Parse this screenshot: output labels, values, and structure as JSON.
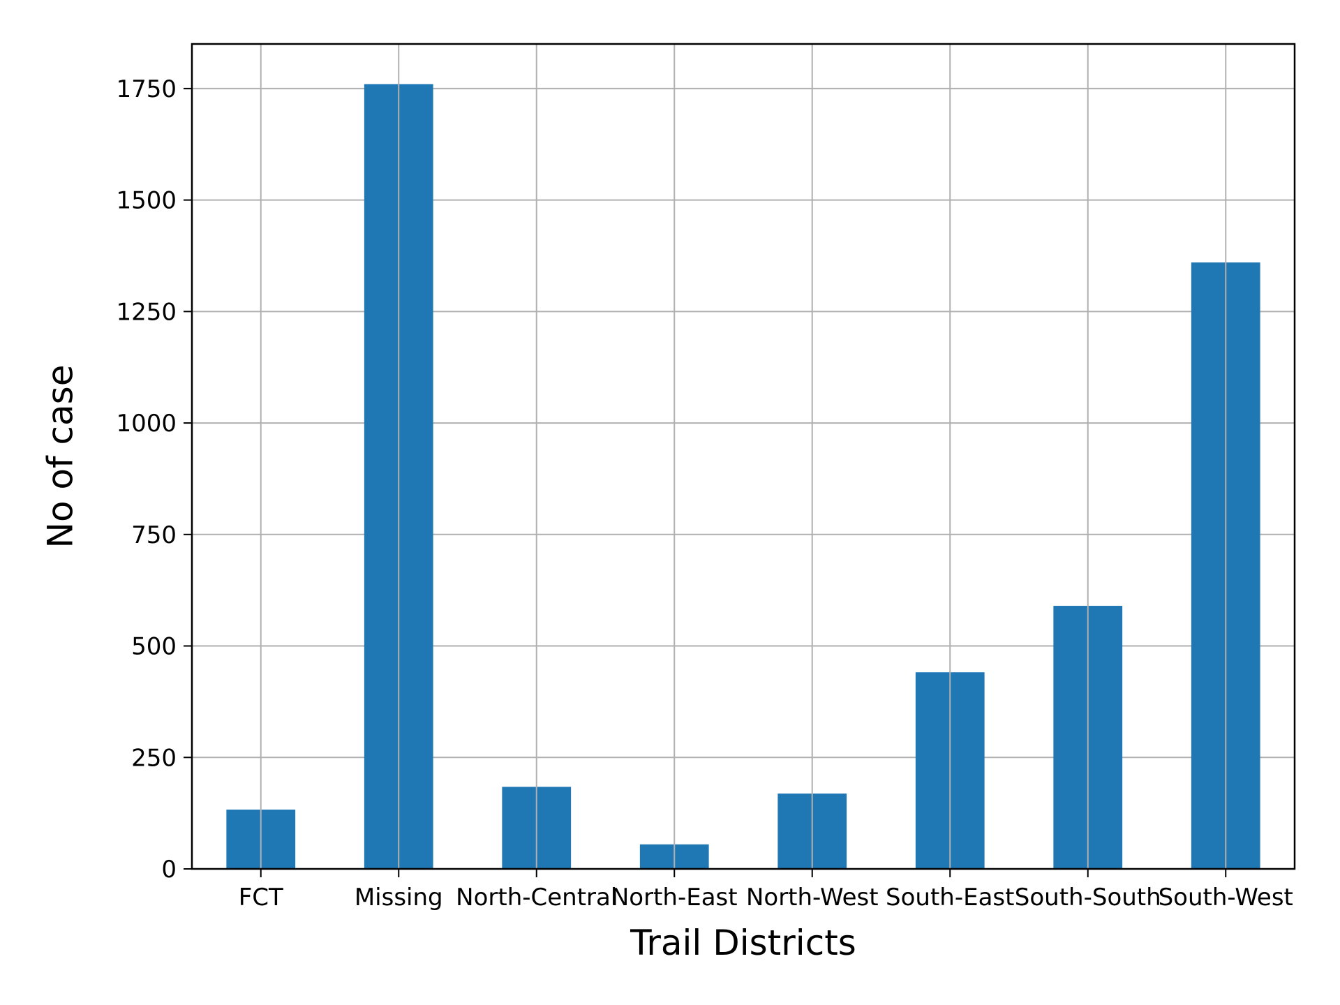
{
  "chart_data": {
    "type": "bar",
    "title": "",
    "xlabel": "Trail Districts",
    "ylabel": "No of case",
    "categories": [
      "FCT",
      "Missing",
      "North-Central",
      "North-East",
      "North-West",
      "South-East",
      "South-South",
      "South-West"
    ],
    "values": [
      133,
      1760,
      184,
      55,
      169,
      441,
      590,
      1360
    ],
    "ylim": [
      0,
      1850
    ],
    "yticks": [
      0,
      250,
      500,
      750,
      1000,
      1250,
      1500,
      1750
    ],
    "ytick_labels": [
      "0",
      "250",
      "500",
      "750",
      "1000",
      "1250",
      "1500",
      "1750"
    ],
    "grid": true,
    "bar_color": "#1f77b4",
    "grid_color": "#b0b0b0"
  }
}
